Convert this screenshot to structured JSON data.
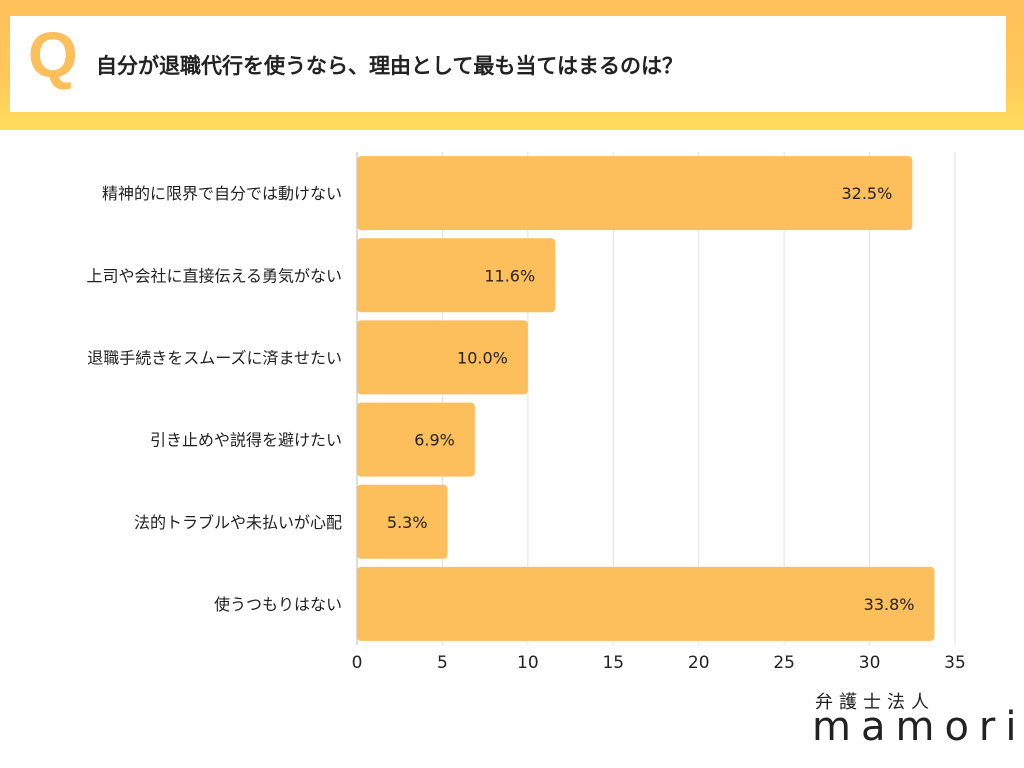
{
  "header": {
    "q_mark": "Q",
    "question": "自分が退職代行を使うなら、理由として最も当てはまるのは？"
  },
  "chart_data": {
    "type": "bar",
    "orientation": "horizontal",
    "categories": [
      "精神的に限界で自分では動けない",
      "上司や会社に直接伝える勇気がない",
      "退職手続きをスムーズに済ませたい",
      "引き止めや説得を避けたい",
      "法的トラブルや未払いが心配",
      "使うつもりはない"
    ],
    "values": [
      32.5,
      11.6,
      10.0,
      6.9,
      5.3,
      33.8
    ],
    "labels": [
      "32.5%",
      "11.6%",
      "10.0%",
      "6.9%",
      "5.3%",
      "33.8%"
    ],
    "xlim": [
      0,
      35
    ],
    "xticks": [
      0,
      5,
      10,
      15,
      20,
      25,
      30,
      35
    ],
    "grid": true,
    "color": "#FDBE5C"
  },
  "logo": {
    "line1": "弁護士法人",
    "line2": "mamori"
  }
}
